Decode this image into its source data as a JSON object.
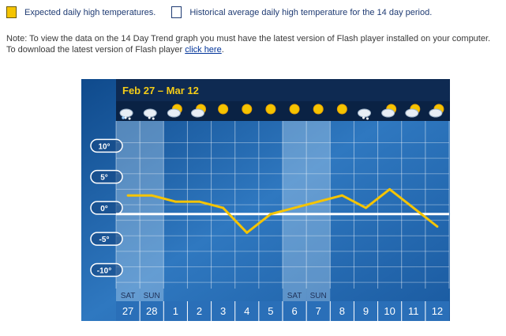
{
  "legend": {
    "expected_label": "Expected daily high temperatures.",
    "historical_label": "Historical average daily high temperature for the 14 day period.",
    "expected_color": "#f5c400",
    "historical_color": "#ffffff"
  },
  "note": {
    "text": "Note: To view the data on the 14 Day Trend graph you must have the latest version of Flash player installed on your computer. To download the latest version of Flash player ",
    "link_text": "click here",
    "suffix": "."
  },
  "widget": {
    "date_range": "Feb 27 –  Mar 12"
  },
  "chart_data": {
    "type": "line",
    "x": [
      "27",
      "28",
      "1",
      "2",
      "3",
      "4",
      "5",
      "6",
      "7",
      "8",
      "9",
      "10",
      "11",
      "12"
    ],
    "weekday_labels": [
      "SAT",
      "SUN",
      "",
      "",
      "",
      "",
      "",
      "SAT",
      "SUN",
      "",
      "",
      "",
      "",
      ""
    ],
    "weather_icons": [
      "rain-snow-cloud-icon",
      "snow-cloud-icon",
      "partly-sunny-icon",
      "partly-sunny-icon",
      "sunny-icon",
      "sunny-icon",
      "sunny-icon",
      "sunny-icon",
      "sunny-icon",
      "sunny-icon",
      "snow-cloud-icon",
      "partly-sunny-icon",
      "partly-sunny-icon",
      "partly-sunny-icon"
    ],
    "weekend_indices": [
      0,
      1,
      7,
      8
    ],
    "y_ticks": [
      "10°",
      "5°",
      "0°",
      "-5°",
      "-10°"
    ],
    "y_tick_values": [
      10,
      5,
      0,
      -5,
      -10
    ],
    "ylim": [
      -13,
      14
    ],
    "series": [
      {
        "values": [
          2,
          2,
          1,
          1,
          0,
          -4,
          -1,
          0,
          1,
          2,
          0,
          3,
          0,
          -3
        ],
        "color": "#f5c400"
      }
    ],
    "historical_average": -1,
    "historical_color": "#ffffff",
    "grid": true
  }
}
